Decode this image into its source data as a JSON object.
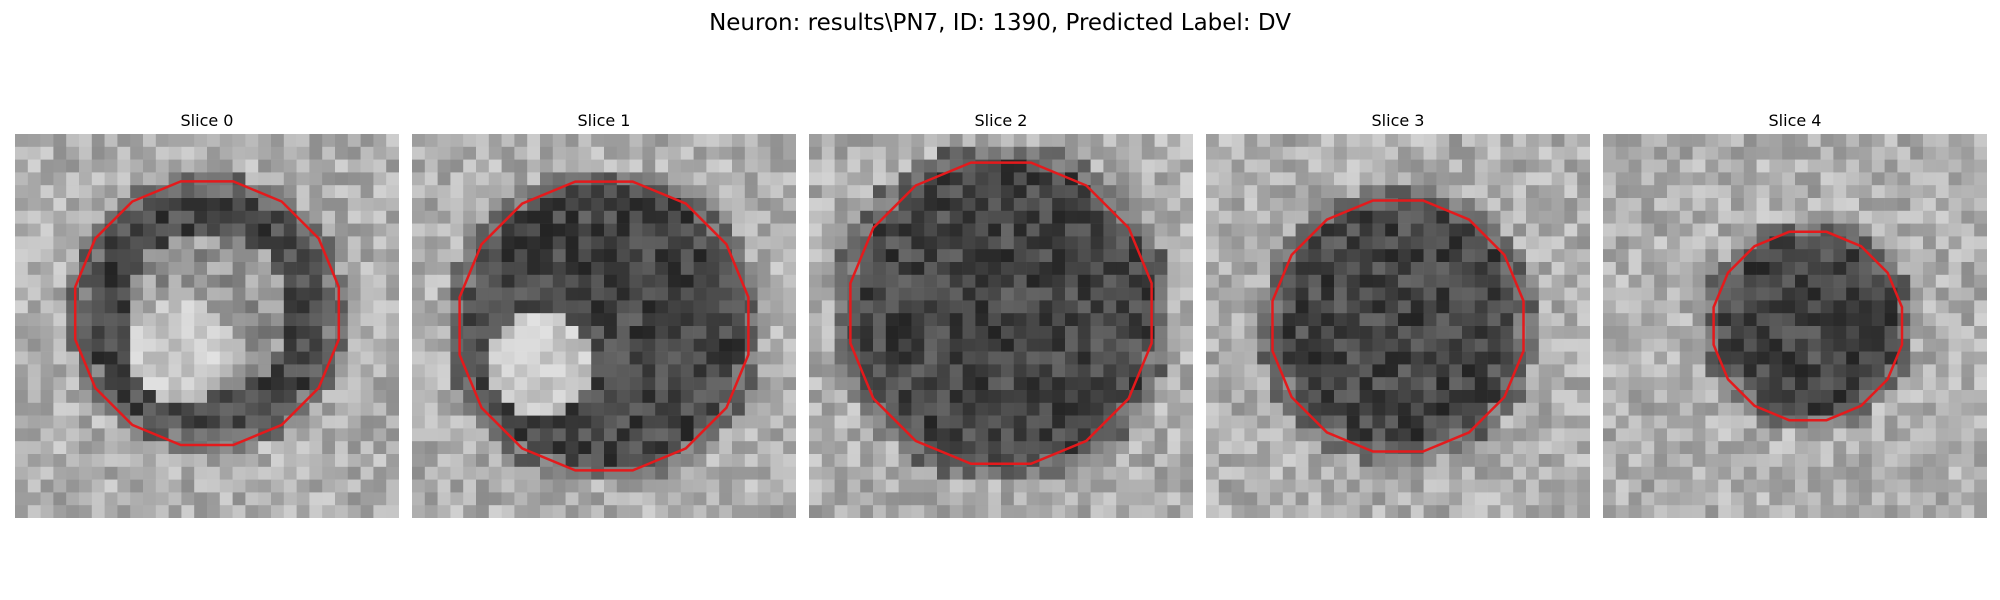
{
  "figure": {
    "suptitle": "Neuron: results\\PN7, ID: 1390, Predicted Label: DV",
    "contour_color": "#e41a1c",
    "image_colormap": "gray",
    "grid_size": 30
  },
  "panels": [
    {
      "title": "Slice 0"
    },
    {
      "title": "Slice 1"
    },
    {
      "title": "Slice 2"
    },
    {
      "title": "Slice 3"
    },
    {
      "title": "Slice 4"
    }
  ]
}
